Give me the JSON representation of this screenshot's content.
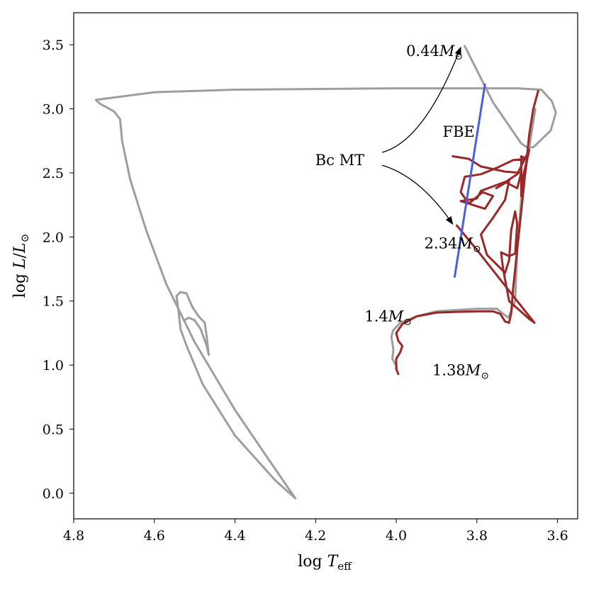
{
  "chart_data": {
    "type": "line",
    "title": "",
    "xlabel": "log T_eff",
    "ylabel": "log L/L_⊙",
    "xlim": [
      4.8,
      3.55
    ],
    "ylim": [
      -0.2,
      3.75
    ],
    "x_inverted": true,
    "grid": false,
    "legend": "none",
    "xticks": [
      {
        "value": 4.8,
        "label": "4.8"
      },
      {
        "value": 4.6,
        "label": "4.6"
      },
      {
        "value": 4.4,
        "label": "4.4"
      },
      {
        "value": 4.2,
        "label": "4.2"
      },
      {
        "value": 4.0,
        "label": "4.0"
      },
      {
        "value": 3.8,
        "label": "3.8"
      },
      {
        "value": 3.6,
        "label": "3.6"
      }
    ],
    "yticks": [
      {
        "value": 0.0,
        "label": "0.0"
      },
      {
        "value": 0.5,
        "label": "0.5"
      },
      {
        "value": 1.0,
        "label": "1.0"
      },
      {
        "value": 1.5,
        "label": "1.5"
      },
      {
        "value": 2.0,
        "label": "2.0"
      },
      {
        "value": 2.5,
        "label": "2.5"
      },
      {
        "value": 3.0,
        "label": "3.0"
      },
      {
        "value": 3.5,
        "label": "3.5"
      }
    ],
    "colors": {
      "gray": "#9e9e9e",
      "red": "#992828",
      "blue": "#4a5fdc",
      "annotation": "#000000"
    },
    "series": [
      {
        "color": "gray",
        "points": [
          [
            3.83,
            3.49
          ],
          [
            3.76,
            3.05
          ],
          [
            3.69,
            2.73
          ],
          [
            3.676,
            2.7
          ],
          [
            3.66,
            2.7
          ],
          [
            3.617,
            2.83
          ],
          [
            3.604,
            2.97
          ],
          [
            3.614,
            3.06
          ],
          [
            3.64,
            3.15
          ],
          [
            3.7,
            3.16
          ],
          [
            4.0,
            3.16
          ],
          [
            4.4,
            3.15
          ],
          [
            4.6,
            3.13
          ],
          [
            4.745,
            3.07
          ],
          [
            4.735,
            3.04
          ],
          [
            4.7,
            2.98
          ],
          [
            4.685,
            2.92
          ],
          [
            4.68,
            2.75
          ],
          [
            4.66,
            2.45
          ],
          [
            4.62,
            2.05
          ],
          [
            4.57,
            1.63
          ],
          [
            4.5,
            1.18
          ],
          [
            4.4,
            0.65
          ],
          [
            4.32,
            0.28
          ],
          [
            4.27,
            0.05
          ],
          [
            4.25,
            -0.04
          ],
          [
            4.3,
            0.1
          ],
          [
            4.4,
            0.45
          ],
          [
            4.48,
            0.85
          ],
          [
            4.52,
            1.15
          ],
          [
            4.535,
            1.28
          ],
          [
            4.54,
            1.42
          ],
          [
            4.545,
            1.54
          ],
          [
            4.535,
            1.57
          ],
          [
            4.52,
            1.56
          ],
          [
            4.515,
            1.52
          ],
          [
            4.505,
            1.45
          ],
          [
            4.49,
            1.38
          ],
          [
            4.475,
            1.33
          ],
          [
            4.47,
            1.22
          ],
          [
            4.465,
            1.08
          ],
          [
            4.47,
            1.15
          ],
          [
            4.485,
            1.28
          ],
          [
            4.5,
            1.35
          ],
          [
            4.515,
            1.37
          ],
          [
            4.525,
            1.35
          ]
        ]
      },
      {
        "color": "gray",
        "points": [
          [
            3.999,
            0.97
          ],
          [
            3.999,
            0.99
          ],
          [
            4.01,
            1.05
          ],
          [
            4.007,
            1.12
          ],
          [
            4.01,
            1.18
          ],
          [
            4.012,
            1.22
          ],
          [
            4.008,
            1.27
          ],
          [
            3.99,
            1.33
          ],
          [
            3.95,
            1.38
          ],
          [
            3.9,
            1.42
          ],
          [
            3.8,
            1.44
          ],
          [
            3.75,
            1.44
          ],
          [
            3.735,
            1.4
          ],
          [
            3.722,
            1.37
          ],
          [
            3.705,
            1.5
          ],
          [
            3.7,
            1.9
          ],
          [
            3.69,
            2.3
          ],
          [
            3.675,
            2.6
          ],
          [
            3.665,
            2.8
          ],
          [
            3.655,
            3.0
          ]
        ]
      },
      {
        "color": "red",
        "points": [
          [
            3.995,
            0.93
          ],
          [
            4.0,
            0.97
          ],
          [
            4.0,
            1.05
          ],
          [
            3.99,
            1.1
          ],
          [
            3.985,
            1.15
          ],
          [
            3.995,
            1.19
          ],
          [
            4.0,
            1.25
          ],
          [
            3.985,
            1.32
          ],
          [
            3.95,
            1.38
          ],
          [
            3.9,
            1.41
          ],
          [
            3.8,
            1.42
          ],
          [
            3.76,
            1.42
          ],
          [
            3.742,
            1.4
          ],
          [
            3.73,
            1.34
          ],
          [
            3.72,
            1.33
          ],
          [
            3.715,
            1.4
          ],
          [
            3.71,
            1.6
          ],
          [
            3.7,
            1.9
          ],
          [
            3.69,
            2.2
          ],
          [
            3.68,
            2.5
          ],
          [
            3.67,
            2.8
          ],
          [
            3.66,
            3.0
          ],
          [
            3.648,
            3.14
          ]
        ]
      },
      {
        "color": "red",
        "points": [
          [
            3.85,
            2.09
          ],
          [
            3.8,
            1.9
          ],
          [
            3.75,
            1.7
          ],
          [
            3.7,
            1.5
          ],
          [
            3.657,
            1.33
          ],
          [
            3.67,
            1.36
          ],
          [
            3.72,
            1.5
          ],
          [
            3.735,
            1.75
          ],
          [
            3.74,
            1.88
          ],
          [
            3.72,
            1.85
          ],
          [
            3.705,
            1.87
          ],
          [
            3.7,
            2.1
          ],
          [
            3.705,
            2.2
          ],
          [
            3.715,
            2.05
          ],
          [
            3.72,
            1.82
          ],
          [
            3.73,
            1.72
          ],
          [
            3.775,
            1.86
          ],
          [
            3.79,
            2.02
          ],
          [
            3.76,
            2.15
          ],
          [
            3.73,
            2.29
          ],
          [
            3.72,
            2.44
          ],
          [
            3.752,
            2.38
          ],
          [
            3.7,
            2.49
          ],
          [
            3.67,
            2.68
          ],
          [
            3.675,
            2.61
          ],
          [
            3.685,
            2.48
          ],
          [
            3.69,
            2.32
          ],
          [
            3.69,
            2.63
          ],
          [
            3.675,
            2.61
          ],
          [
            3.71,
            2.6
          ],
          [
            3.75,
            2.54
          ],
          [
            3.79,
            2.49
          ],
          [
            3.83,
            2.47
          ],
          [
            3.84,
            2.35
          ],
          [
            3.82,
            2.26
          ],
          [
            3.78,
            2.22
          ],
          [
            3.76,
            2.32
          ],
          [
            3.786,
            2.35
          ],
          [
            3.82,
            2.26
          ],
          [
            3.84,
            2.28
          ],
          [
            3.8,
            2.3
          ],
          [
            3.79,
            2.36
          ],
          [
            3.73,
            2.43
          ],
          [
            3.7,
            2.38
          ],
          [
            3.69,
            2.5
          ],
          [
            3.73,
            2.51
          ],
          [
            3.79,
            2.55
          ],
          [
            3.82,
            2.61
          ],
          [
            3.86,
            2.63
          ]
        ]
      },
      {
        "color": "blue",
        "points": [
          [
            3.855,
            1.69
          ],
          [
            3.78,
            3.19
          ]
        ]
      }
    ],
    "annotations": [
      {
        "id": "mass-0-44",
        "text_main": "0.44M",
        "text_sub": "⊙",
        "x": 3.905,
        "y": 3.45
      },
      {
        "id": "fbe",
        "text_main": "FBE",
        "text_sub": "",
        "x": 3.845,
        "y": 2.82
      },
      {
        "id": "bc-mt",
        "text_main": "Bc MT",
        "text_sub": "",
        "x": 4.14,
        "y": 2.6
      },
      {
        "id": "mass-2-34",
        "text_main": "2.34M",
        "text_sub": "⊙",
        "x": 3.86,
        "y": 1.95
      },
      {
        "id": "mass-1-4",
        "text_main": "1.4M",
        "text_sub": "⊙",
        "x": 4.02,
        "y": 1.38
      },
      {
        "id": "mass-1-38",
        "text_main": "1.38M",
        "text_sub": "⊙",
        "x": 3.84,
        "y": 0.96
      }
    ],
    "arrows": [
      {
        "id": "bc-mt-arrow-upper",
        "from": [
          4.035,
          2.66
        ],
        "via": [
          3.93,
          2.75
        ],
        "to": [
          3.84,
          3.48
        ]
      },
      {
        "id": "bc-mt-arrow-lower",
        "from": [
          4.035,
          2.56
        ],
        "via": [
          3.94,
          2.47
        ],
        "to": [
          3.86,
          2.1
        ]
      }
    ]
  }
}
